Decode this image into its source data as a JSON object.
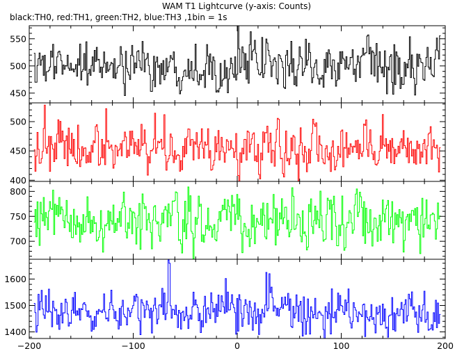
{
  "chart_data": {
    "type": "line",
    "title": "WAM T1 Lightcurve (y-axis: Counts)",
    "subtitle": "black:TH0, red:TH1, green:TH2, blue:TH3 ,1bin = 1s",
    "xlim": [
      -200,
      200
    ],
    "x_ticks": [
      -200,
      -100,
      0,
      100,
      200
    ],
    "x_tick_labels": [
      "−200",
      "−100",
      "0",
      "100",
      "200"
    ],
    "grid": false,
    "panels": [
      {
        "series_name": "TH0",
        "color": "#000000",
        "ylim": [
          432,
          574
        ],
        "y_ticks": [
          450,
          500,
          550
        ],
        "y_tick_labels": [
          "450",
          "500",
          "550"
        ],
        "mean": 500,
        "std": 22,
        "spikes": [
          [
            1,
            574
          ]
        ]
      },
      {
        "series_name": "TH1",
        "color": "#ff0000",
        "ylim": [
          398,
          532
        ],
        "y_ticks": [
          400,
          450,
          500
        ],
        "y_tick_labels": [
          "400",
          "450",
          "500"
        ],
        "mean": 455,
        "std": 22,
        "spikes": [
          [
            -126,
            522
          ]
        ]
      },
      {
        "series_name": "TH2",
        "color": "#00ff00",
        "ylim": [
          664,
          820
        ],
        "y_ticks": [
          700,
          750,
          800
        ],
        "y_tick_labels": [
          "700",
          "750",
          "800"
        ],
        "mean": 740,
        "std": 28,
        "spikes": []
      },
      {
        "series_name": "TH3",
        "color": "#0000ff",
        "ylim": [
          1375,
          1675
        ],
        "y_ticks": [
          1400,
          1500,
          1600
        ],
        "y_tick_labels": [
          "1400",
          "1500",
          "1600"
        ],
        "mean": 1475,
        "std": 40,
        "spikes": [
          [
            -66,
            1672
          ],
          [
            -65,
            1660
          ],
          [
            28,
            1625
          ],
          [
            31,
            1620
          ]
        ]
      }
    ]
  }
}
